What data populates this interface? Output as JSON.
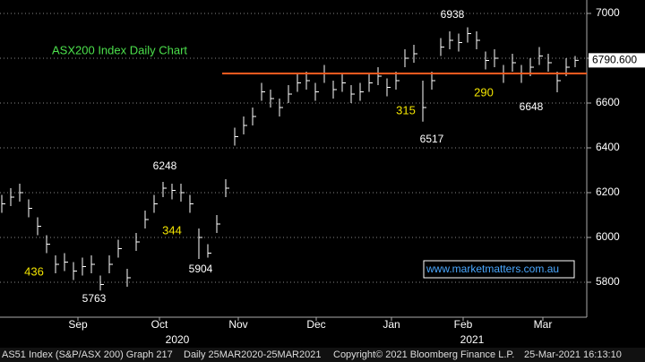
{
  "chart_data": {
    "type": "hlc",
    "title": "ASX200 Index Daily Chart",
    "high": [
      6190,
      6220,
      6240,
      6170,
      6090,
      6010,
      5920,
      5930,
      5890,
      5910,
      5920,
      5830,
      5920,
      5990,
      5860,
      6020,
      6120,
      6190,
      6248,
      6240,
      6240,
      6190,
      6040,
      5970,
      6100,
      6260,
      6490,
      6540,
      6580,
      6690,
      6660,
      6620,
      6680,
      6730,
      6740,
      6690,
      6770,
      6700,
      6730,
      6680,
      6690,
      6730,
      6760,
      6710,
      6740,
      6840,
      6860,
      6700,
      6740,
      6890,
      6920,
      6910,
      6938,
      6920,
      6830,
      6840,
      6770,
      6820,
      6770,
      6800,
      6850,
      6820,
      6740,
      6800,
      6810
    ],
    "low": [
      6110,
      6140,
      6160,
      6090,
      6010,
      5930,
      5840,
      5850,
      5810,
      5830,
      5840,
      5763,
      5840,
      5910,
      5780,
      5940,
      6040,
      6110,
      6180,
      6170,
      6160,
      6110,
      5904,
      5910,
      6020,
      6180,
      6410,
      6460,
      6500,
      6610,
      6580,
      6540,
      6600,
      6650,
      6660,
      6610,
      6690,
      6620,
      6650,
      6600,
      6610,
      6650,
      6680,
      6630,
      6660,
      6760,
      6780,
      6517,
      6660,
      6810,
      6840,
      6830,
      6870,
      6840,
      6750,
      6760,
      6690,
      6740,
      6690,
      6720,
      6770,
      6740,
      6648,
      6720,
      6760
    ],
    "close": [
      6150,
      6180,
      6200,
      6130,
      6050,
      5970,
      5880,
      5890,
      5850,
      5870,
      5880,
      5790,
      5880,
      5950,
      5820,
      5980,
      6080,
      6150,
      6220,
      6210,
      6200,
      6150,
      6000,
      5930,
      6060,
      6220,
      6450,
      6500,
      6540,
      6650,
      6620,
      6580,
      6640,
      6690,
      6700,
      6650,
      6730,
      6660,
      6690,
      6640,
      6650,
      6690,
      6720,
      6670,
      6700,
      6800,
      6820,
      6580,
      6700,
      6850,
      6880,
      6870,
      6910,
      6880,
      6790,
      6800,
      6730,
      6780,
      6730,
      6760,
      6810,
      6780,
      6700,
      6760,
      6790.6
    ],
    "color": "#ffffff",
    "xlim": [
      -0.2,
      65.3
    ],
    "ylim": [
      5644,
      7060
    ],
    "yticks": [
      5800,
      6000,
      6200,
      6400,
      6600,
      6800,
      7000
    ],
    "xticks": [
      {
        "value": 8.5,
        "label": "Sep"
      },
      {
        "value": 17.6,
        "label": "Oct"
      },
      {
        "value": 26.4,
        "label": "Nov"
      },
      {
        "value": 35.1,
        "label": "Dec"
      },
      {
        "value": 43.5,
        "label": "Jan"
      },
      {
        "value": 51.5,
        "label": "Feb"
      },
      {
        "value": 60.4,
        "label": "Mar"
      }
    ],
    "year_ticks": [
      {
        "value": 19.6,
        "label": "2020"
      },
      {
        "value": 52.5,
        "label": "2021"
      }
    ],
    "hline": {
      "value": 6732,
      "start": 24.6,
      "color": "#ff5a1f"
    },
    "last_price": {
      "value": 6790.6,
      "label": "6790.600"
    },
    "grid": true,
    "annotations": [
      "6938",
      "6248",
      "5763",
      "5904",
      "6517",
      "6648",
      "436",
      "344",
      "315",
      "290"
    ],
    "url": "www.marketmatters.com.au",
    "footer": [
      "AS51 Index (S&P/ASX 200) Graph 217",
      "Daily 25MAR2020-25MAR2021",
      "Copyright© 2021 Bloomberg Finance L.P.",
      "25-Mar-2021 16:13:10"
    ]
  }
}
